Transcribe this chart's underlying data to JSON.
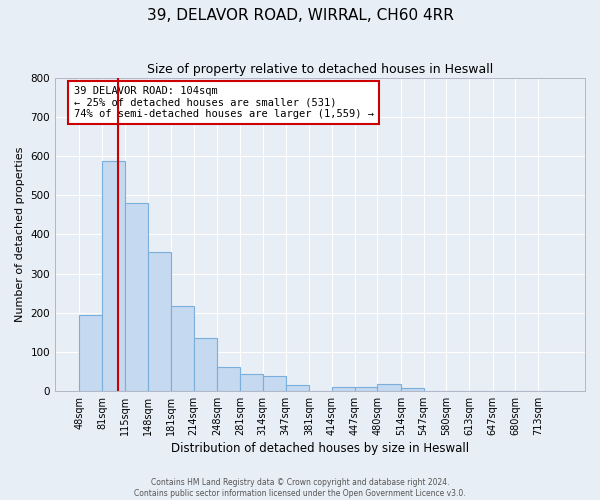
{
  "title": "39, DELAVOR ROAD, WIRRAL, CH60 4RR",
  "subtitle": "Size of property relative to detached houses in Heswall",
  "xlabel": "Distribution of detached houses by size in Heswall",
  "ylabel": "Number of detached properties",
  "bin_labels": [
    "48sqm",
    "81sqm",
    "115sqm",
    "148sqm",
    "181sqm",
    "214sqm",
    "248sqm",
    "281sqm",
    "314sqm",
    "347sqm",
    "381sqm",
    "414sqm",
    "447sqm",
    "480sqm",
    "514sqm",
    "547sqm",
    "580sqm",
    "613sqm",
    "647sqm",
    "680sqm",
    "713sqm"
  ],
  "bin_edges": [
    48,
    81,
    115,
    148,
    181,
    214,
    248,
    281,
    314,
    347,
    381,
    414,
    447,
    480,
    514,
    547,
    580,
    613,
    647,
    680,
    713,
    746
  ],
  "bar_heights": [
    193,
    587,
    480,
    355,
    217,
    134,
    61,
    44,
    37,
    15,
    0,
    10,
    10,
    18,
    8,
    0,
    0,
    0,
    0,
    0,
    0
  ],
  "bar_color": "#c5d9f0",
  "bar_edgecolor": "#7aafdc",
  "property_size": 104,
  "annotation_line": "39 DELAVOR ROAD: 104sqm",
  "annotation_smaller": "← 25% of detached houses are smaller (531)",
  "annotation_larger": "74% of semi-detached houses are larger (1,559) →",
  "annotation_box_color": "#ffffff",
  "annotation_box_edgecolor": "#cc0000",
  "marker_line_color": "#cc0000",
  "ylim": [
    0,
    800
  ],
  "yticks": [
    0,
    100,
    200,
    300,
    400,
    500,
    600,
    700,
    800
  ],
  "footer1": "Contains HM Land Registry data © Crown copyright and database right 2024.",
  "footer2": "Contains public sector information licensed under the Open Government Licence v3.0.",
  "background_color": "#e8eef5",
  "grid_color": "#ffffff",
  "figsize": [
    6.0,
    5.0
  ],
  "dpi": 100
}
